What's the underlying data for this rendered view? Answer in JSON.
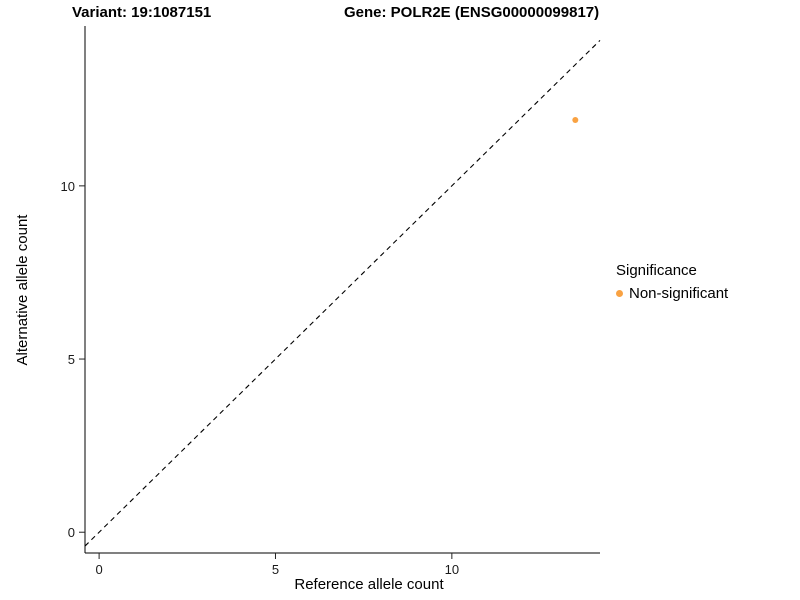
{
  "titles": {
    "variant": "Variant: 19:1087151",
    "gene": "Gene: POLR2E (ENSG00000099817)"
  },
  "chart_data": {
    "type": "scatter",
    "title_left": "Variant: 19:1087151",
    "title_right": "Gene: POLR2E (ENSG00000099817)",
    "xlabel": "Reference allele count",
    "ylabel": "Alternative allele count",
    "xlim": [
      -0.4,
      14.2
    ],
    "ylim": [
      -0.6,
      14.5
    ],
    "xticks": [
      0,
      5,
      10
    ],
    "yticks": [
      0,
      5,
      10
    ],
    "grid": false,
    "identity_line": {
      "style": "dashed",
      "from": "y=x"
    },
    "points": [
      {
        "x": 13.5,
        "y": 11.9,
        "series": "Non-significant",
        "color": "#F9A242"
      }
    ],
    "legend": {
      "position": "right",
      "title": "Significance",
      "entries": [
        {
          "label": "Non-significant",
          "color": "#F9A242"
        }
      ]
    }
  },
  "colors": {
    "point_orange": "#F9A242",
    "axis": "#000000",
    "text": "#000000"
  }
}
